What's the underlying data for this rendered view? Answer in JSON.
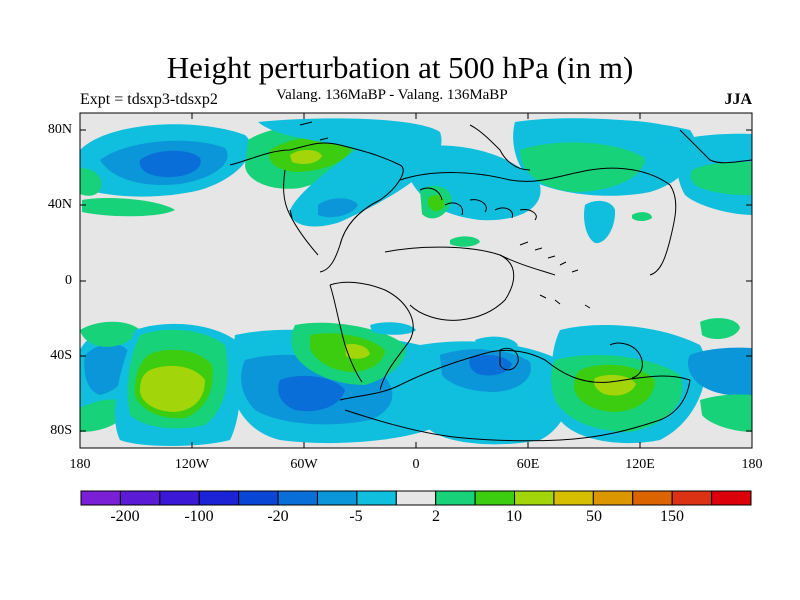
{
  "title": "Height perturbation at 500 hPa (in m)",
  "left_subtitle": "Expt = tdsxp3-tdsxp2",
  "center_subtitle": "Valang. 136MaBP - Valang. 136MaBP",
  "right_subtitle": "JJA",
  "lat_labels": [
    "80N",
    "40N",
    "0",
    "40S",
    "80S"
  ],
  "lon_labels": [
    "180",
    "120W",
    "60W",
    "0",
    "60E",
    "120E",
    "180"
  ],
  "legend": {
    "colors": [
      "#7a1fd6",
      "#5a1ad6",
      "#3a18d6",
      "#1c22d6",
      "#0a46d6",
      "#0a6ed8",
      "#0a96d8",
      "#10bedd",
      "#e6e6e6",
      "#18d27a",
      "#3ccc10",
      "#a2d60a",
      "#d6be00",
      "#dc9600",
      "#dc6400",
      "#dc3214",
      "#dc000a"
    ],
    "labels": [
      "-200",
      "-100",
      "-20",
      "-5",
      "2",
      "10",
      "50",
      "150"
    ]
  },
  "palette": {
    "background": "#e6e6e6",
    "light_blue": "#10bedd",
    "mid_blue": "#0a96d8",
    "deep_blue": "#0a6ed8",
    "green": "#18d27a",
    "bright_green": "#3ccc10",
    "yellow_green": "#a2d60a"
  }
}
